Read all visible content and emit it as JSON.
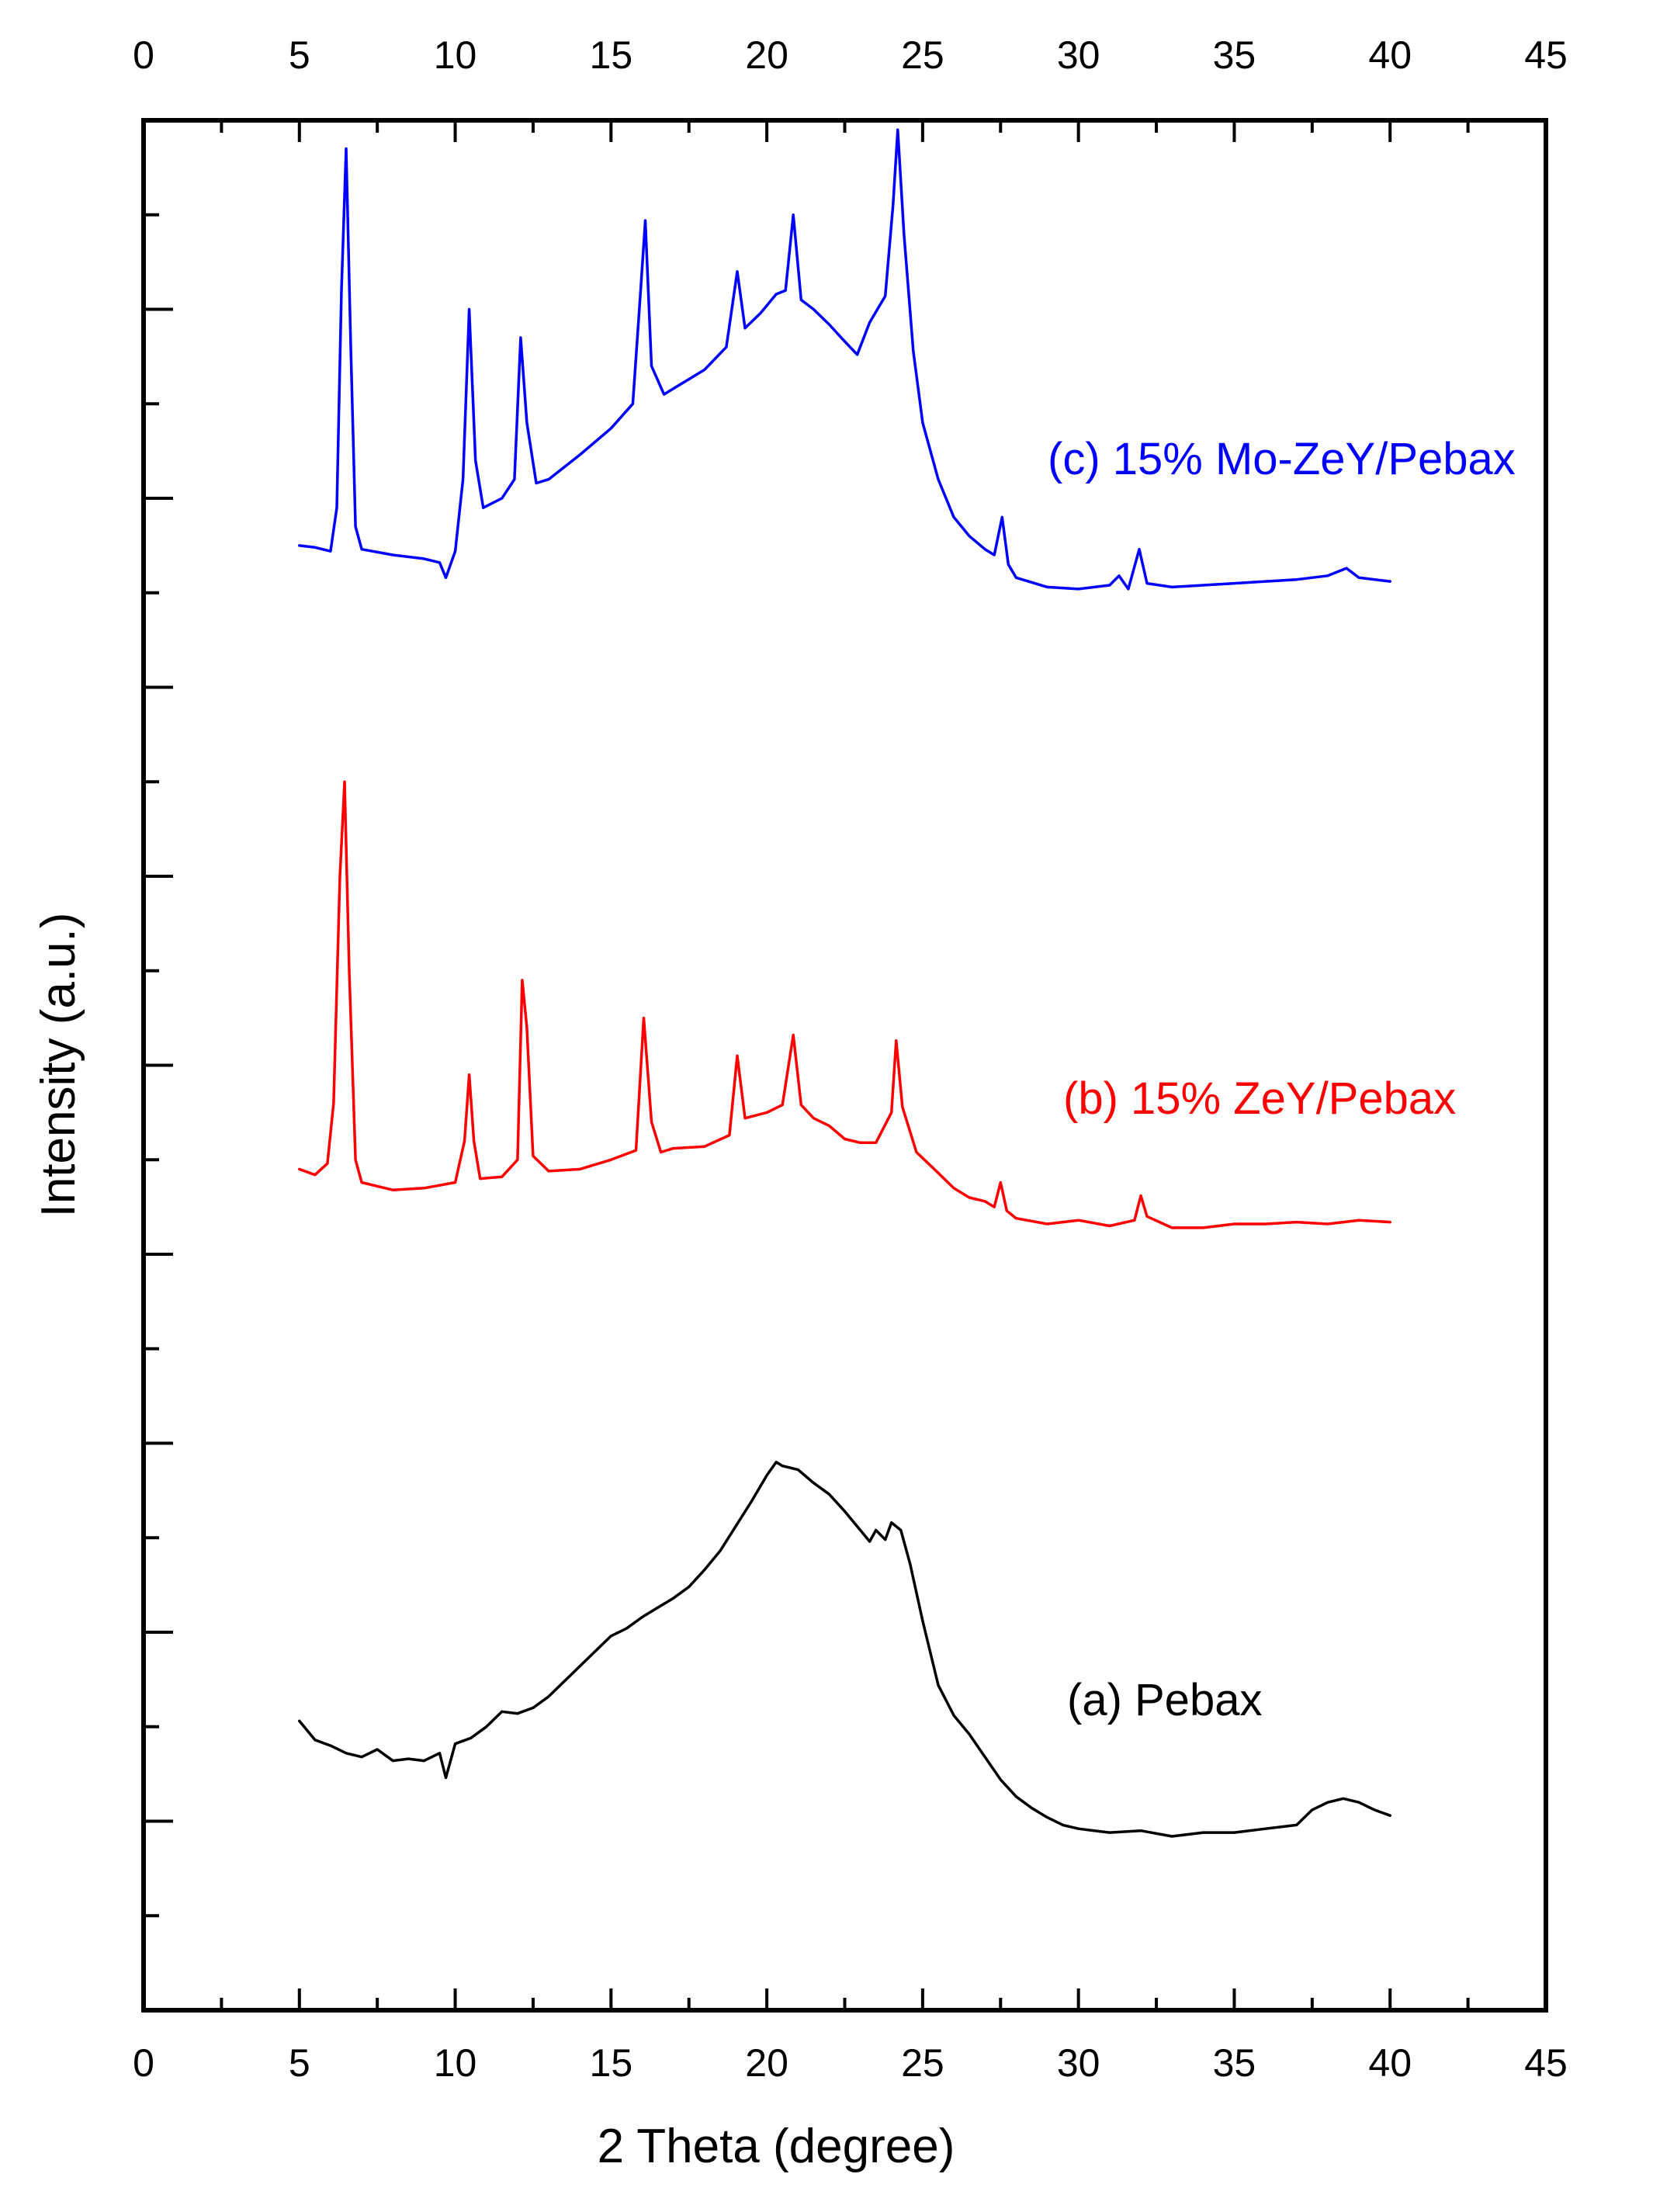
{
  "chart_data": {
    "type": "line",
    "title": "",
    "xlabel": "2 Theta (degree)",
    "ylabel": "Intensity (a.u.)",
    "xlim": [
      0,
      45
    ],
    "ylim": [
      0,
      100
    ],
    "x_ticks": [
      "0",
      "5",
      "10",
      "15",
      "20",
      "25",
      "30",
      "35",
      "40",
      "45"
    ],
    "y_tick_labels": "none",
    "grid": false,
    "series": [
      {
        "name": "(a) Pebax",
        "color": "#000000",
        "points": [
          [
            5.0,
            15.3
          ],
          [
            5.5,
            14.3
          ],
          [
            6.0,
            14.0
          ],
          [
            6.5,
            13.6
          ],
          [
            7.0,
            13.4
          ],
          [
            7.5,
            13.8
          ],
          [
            8.0,
            13.2
          ],
          [
            8.5,
            13.3
          ],
          [
            9.0,
            13.2
          ],
          [
            9.5,
            13.6
          ],
          [
            9.7,
            12.3
          ],
          [
            10.0,
            14.1
          ],
          [
            10.5,
            14.4
          ],
          [
            11.0,
            15.0
          ],
          [
            11.5,
            15.8
          ],
          [
            12.0,
            15.7
          ],
          [
            12.5,
            16.0
          ],
          [
            13.0,
            16.6
          ],
          [
            13.5,
            17.4
          ],
          [
            14.0,
            18.2
          ],
          [
            14.5,
            19.0
          ],
          [
            15.0,
            19.8
          ],
          [
            15.5,
            20.2
          ],
          [
            16.0,
            20.8
          ],
          [
            16.5,
            21.3
          ],
          [
            17.0,
            21.8
          ],
          [
            17.5,
            22.4
          ],
          [
            18.0,
            23.3
          ],
          [
            18.5,
            24.3
          ],
          [
            19.0,
            25.6
          ],
          [
            19.5,
            26.9
          ],
          [
            20.0,
            28.3
          ],
          [
            20.3,
            29.0
          ],
          [
            20.5,
            28.8
          ],
          [
            21.0,
            28.6
          ],
          [
            21.5,
            27.9
          ],
          [
            22.0,
            27.3
          ],
          [
            22.5,
            26.4
          ],
          [
            23.0,
            25.4
          ],
          [
            23.3,
            24.8
          ],
          [
            23.5,
            25.4
          ],
          [
            23.8,
            24.9
          ],
          [
            24.0,
            25.8
          ],
          [
            24.3,
            25.4
          ],
          [
            24.6,
            23.6
          ],
          [
            25.0,
            20.6
          ],
          [
            25.5,
            17.2
          ],
          [
            26.0,
            15.6
          ],
          [
            26.5,
            14.6
          ],
          [
            27.0,
            13.4
          ],
          [
            27.5,
            12.2
          ],
          [
            28.0,
            11.3
          ],
          [
            28.5,
            10.7
          ],
          [
            29.0,
            10.2
          ],
          [
            29.5,
            9.8
          ],
          [
            30.0,
            9.6
          ],
          [
            31.0,
            9.4
          ],
          [
            32.0,
            9.5
          ],
          [
            33.0,
            9.2
          ],
          [
            34.0,
            9.4
          ],
          [
            35.0,
            9.4
          ],
          [
            36.0,
            9.6
          ],
          [
            37.0,
            9.8
          ],
          [
            37.5,
            10.6
          ],
          [
            38.0,
            11.0
          ],
          [
            38.5,
            11.2
          ],
          [
            39.0,
            11.0
          ],
          [
            39.5,
            10.6
          ],
          [
            40.0,
            10.3
          ]
        ]
      },
      {
        "name": "(b) 15% ZeY/Pebax",
        "color": "#ff0000",
        "points": [
          [
            5.0,
            44.5
          ],
          [
            5.5,
            44.2
          ],
          [
            5.9,
            44.8
          ],
          [
            6.1,
            48.0
          ],
          [
            6.3,
            60.0
          ],
          [
            6.45,
            65.0
          ],
          [
            6.6,
            55.0
          ],
          [
            6.8,
            45.0
          ],
          [
            7.0,
            43.8
          ],
          [
            8.0,
            43.4
          ],
          [
            9.0,
            43.5
          ],
          [
            10.0,
            43.8
          ],
          [
            10.3,
            46.0
          ],
          [
            10.45,
            49.5
          ],
          [
            10.6,
            46.0
          ],
          [
            10.8,
            44.0
          ],
          [
            11.5,
            44.1
          ],
          [
            12.0,
            45.0
          ],
          [
            12.15,
            54.5
          ],
          [
            12.3,
            52.0
          ],
          [
            12.5,
            45.2
          ],
          [
            13.0,
            44.4
          ],
          [
            14.0,
            44.5
          ],
          [
            15.0,
            45.0
          ],
          [
            15.8,
            45.5
          ],
          [
            16.05,
            52.5
          ],
          [
            16.3,
            47.0
          ],
          [
            16.6,
            45.4
          ],
          [
            17.0,
            45.6
          ],
          [
            18.0,
            45.7
          ],
          [
            18.8,
            46.3
          ],
          [
            19.05,
            50.5
          ],
          [
            19.3,
            47.2
          ],
          [
            20.0,
            47.5
          ],
          [
            20.5,
            47.9
          ],
          [
            20.85,
            51.6
          ],
          [
            21.1,
            47.9
          ],
          [
            21.5,
            47.2
          ],
          [
            22.0,
            46.8
          ],
          [
            22.5,
            46.1
          ],
          [
            23.0,
            45.9
          ],
          [
            23.5,
            45.9
          ],
          [
            24.0,
            47.5
          ],
          [
            24.15,
            51.3
          ],
          [
            24.35,
            47.8
          ],
          [
            24.8,
            45.4
          ],
          [
            25.5,
            44.3
          ],
          [
            26.0,
            43.5
          ],
          [
            26.5,
            43.0
          ],
          [
            27.0,
            42.8
          ],
          [
            27.3,
            42.5
          ],
          [
            27.5,
            43.8
          ],
          [
            27.7,
            42.3
          ],
          [
            28.0,
            41.9
          ],
          [
            29.0,
            41.6
          ],
          [
            30.0,
            41.8
          ],
          [
            31.0,
            41.5
          ],
          [
            31.8,
            41.8
          ],
          [
            32.0,
            43.1
          ],
          [
            32.2,
            42.0
          ],
          [
            33.0,
            41.4
          ],
          [
            34.0,
            41.4
          ],
          [
            35.0,
            41.6
          ],
          [
            36.0,
            41.6
          ],
          [
            37.0,
            41.7
          ],
          [
            38.0,
            41.6
          ],
          [
            39.0,
            41.8
          ],
          [
            40.0,
            41.7
          ]
        ]
      },
      {
        "name": "(c) 15% Mo-ZeY/Pebax",
        "color": "#0000ff",
        "points": [
          [
            5.0,
            77.5
          ],
          [
            5.5,
            77.4
          ],
          [
            6.0,
            77.2
          ],
          [
            6.2,
            79.5
          ],
          [
            6.35,
            91.0
          ],
          [
            6.5,
            98.5
          ],
          [
            6.65,
            88.0
          ],
          [
            6.8,
            78.5
          ],
          [
            7.0,
            77.3
          ],
          [
            8.0,
            77.0
          ],
          [
            9.0,
            76.8
          ],
          [
            9.5,
            76.6
          ],
          [
            9.7,
            75.8
          ],
          [
            10.0,
            77.2
          ],
          [
            10.25,
            81.0
          ],
          [
            10.45,
            90.0
          ],
          [
            10.65,
            82.0
          ],
          [
            10.9,
            79.5
          ],
          [
            11.5,
            80.0
          ],
          [
            11.9,
            81.0
          ],
          [
            12.1,
            88.5
          ],
          [
            12.3,
            84.0
          ],
          [
            12.6,
            80.8
          ],
          [
            13.0,
            81.0
          ],
          [
            14.0,
            82.3
          ],
          [
            15.0,
            83.7
          ],
          [
            15.7,
            85.0
          ],
          [
            15.95,
            91.0
          ],
          [
            16.1,
            94.7
          ],
          [
            16.3,
            87.0
          ],
          [
            16.7,
            85.5
          ],
          [
            17.0,
            85.8
          ],
          [
            18.0,
            86.8
          ],
          [
            18.7,
            88.0
          ],
          [
            19.05,
            92.0
          ],
          [
            19.3,
            89.0
          ],
          [
            19.8,
            89.8
          ],
          [
            20.3,
            90.8
          ],
          [
            20.6,
            91.0
          ],
          [
            20.85,
            95.0
          ],
          [
            21.1,
            90.5
          ],
          [
            21.5,
            90.0
          ],
          [
            22.0,
            89.2
          ],
          [
            22.5,
            88.3
          ],
          [
            22.9,
            87.6
          ],
          [
            23.3,
            89.3
          ],
          [
            23.8,
            90.7
          ],
          [
            24.05,
            95.5
          ],
          [
            24.2,
            99.5
          ],
          [
            24.4,
            94.0
          ],
          [
            24.7,
            87.8
          ],
          [
            25.0,
            84.0
          ],
          [
            25.5,
            81.0
          ],
          [
            26.0,
            79.0
          ],
          [
            26.5,
            78.0
          ],
          [
            27.0,
            77.3
          ],
          [
            27.3,
            77.0
          ],
          [
            27.55,
            79.0
          ],
          [
            27.75,
            76.5
          ],
          [
            28.0,
            75.8
          ],
          [
            29.0,
            75.3
          ],
          [
            30.0,
            75.2
          ],
          [
            31.0,
            75.4
          ],
          [
            31.3,
            75.9
          ],
          [
            31.6,
            75.2
          ],
          [
            31.95,
            77.3
          ],
          [
            32.2,
            75.5
          ],
          [
            33.0,
            75.3
          ],
          [
            34.0,
            75.4
          ],
          [
            35.0,
            75.5
          ],
          [
            36.0,
            75.6
          ],
          [
            37.0,
            75.7
          ],
          [
            38.0,
            75.9
          ],
          [
            38.6,
            76.3
          ],
          [
            39.0,
            75.8
          ],
          [
            40.0,
            75.6
          ]
        ]
      }
    ]
  }
}
